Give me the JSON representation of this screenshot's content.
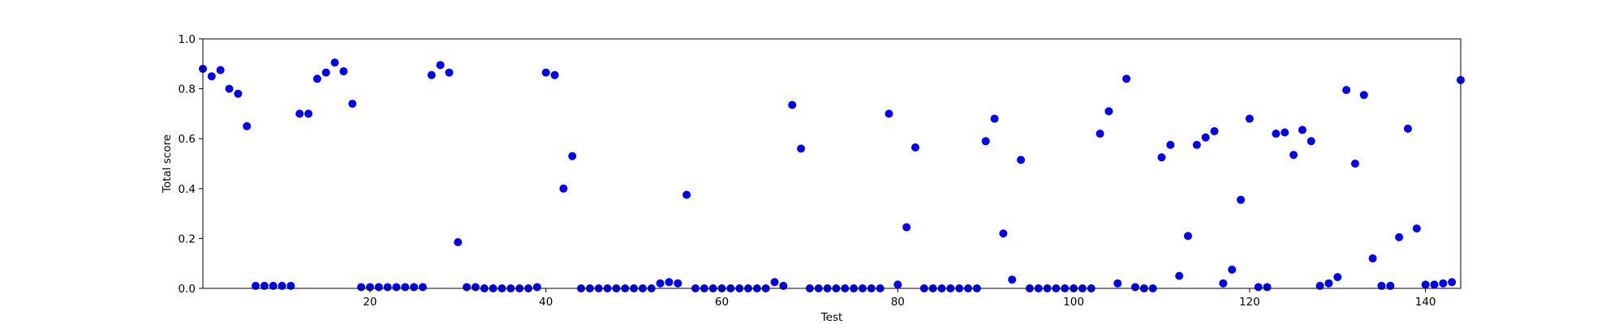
{
  "chart_data": {
    "type": "scatter",
    "xlabel": "Test",
    "ylabel": "Total score",
    "xlim": [
      1,
      144
    ],
    "ylim": [
      0,
      1.0
    ],
    "xticks": [
      20,
      40,
      60,
      80,
      100,
      120,
      140
    ],
    "yticks": [
      0.0,
      0.2,
      0.4,
      0.6,
      0.8,
      1.0
    ],
    "grid": false,
    "marker_color": "#0000ff",
    "x": [
      1,
      2,
      3,
      4,
      5,
      6,
      7,
      8,
      9,
      10,
      11,
      12,
      13,
      14,
      15,
      16,
      17,
      18,
      19,
      20,
      21,
      22,
      23,
      24,
      25,
      26,
      27,
      28,
      29,
      30,
      31,
      32,
      33,
      34,
      35,
      36,
      37,
      38,
      39,
      40,
      41,
      42,
      43,
      44,
      45,
      46,
      47,
      48,
      49,
      50,
      51,
      52,
      53,
      54,
      55,
      56,
      57,
      58,
      59,
      60,
      61,
      62,
      63,
      64,
      65,
      66,
      67,
      68,
      69,
      70,
      71,
      72,
      73,
      74,
      75,
      76,
      77,
      78,
      79,
      80,
      81,
      82,
      83,
      84,
      85,
      86,
      87,
      88,
      89,
      90,
      91,
      92,
      93,
      94,
      95,
      96,
      97,
      98,
      99,
      100,
      101,
      102,
      103,
      104,
      105,
      106,
      107,
      108,
      109,
      110,
      111,
      112,
      113,
      114,
      115,
      116,
      117,
      118,
      119,
      120,
      121,
      122,
      123,
      124,
      125,
      126,
      127,
      128,
      129,
      130,
      131,
      132,
      133,
      134,
      135,
      136,
      137,
      138,
      139,
      140,
      141,
      142,
      143,
      144
    ],
    "y": [
      0.88,
      0.85,
      0.875,
      0.8,
      0.78,
      0.65,
      0.01,
      0.01,
      0.01,
      0.01,
      0.01,
      0.7,
      0.7,
      0.84,
      0.865,
      0.905,
      0.87,
      0.74,
      0.005,
      0.005,
      0.005,
      0.005,
      0.005,
      0.005,
      0.005,
      0.005,
      0.855,
      0.895,
      0.865,
      0.185,
      0.005,
      0.005,
      0.0,
      0.0,
      0.0,
      0.0,
      0.0,
      0.0,
      0.005,
      0.865,
      0.855,
      0.4,
      0.53,
      0.0,
      0.0,
      0.0,
      0.0,
      0.0,
      0.0,
      0.0,
      0.0,
      0.0,
      0.02,
      0.025,
      0.02,
      0.375,
      0.0,
      0.0,
      0.0,
      0.0,
      0.0,
      0.0,
      0.0,
      0.0,
      0.0,
      0.025,
      0.01,
      0.735,
      0.56,
      0.0,
      0.0,
      0.0,
      0.0,
      0.0,
      0.0,
      0.0,
      0.0,
      0.0,
      0.7,
      0.015,
      0.245,
      0.565,
      0.0,
      0.0,
      0.0,
      0.0,
      0.0,
      0.0,
      0.0,
      0.59,
      0.68,
      0.22,
      0.035,
      0.515,
      0.0,
      0.0,
      0.0,
      0.0,
      0.0,
      0.0,
      0.0,
      0.0,
      0.62,
      0.71,
      0.02,
      0.84,
      0.005,
      0.0,
      0.0,
      0.525,
      0.575,
      0.05,
      0.21,
      0.575,
      0.605,
      0.63,
      0.02,
      0.075,
      0.355,
      0.68,
      0.005,
      0.005,
      0.62,
      0.625,
      0.535,
      0.635,
      0.59,
      0.01,
      0.02,
      0.045,
      0.795,
      0.5,
      0.775,
      0.12,
      0.01,
      0.01,
      0.205,
      0.64,
      0.24,
      0.015,
      0.015,
      0.02,
      0.025,
      0.835
    ]
  }
}
